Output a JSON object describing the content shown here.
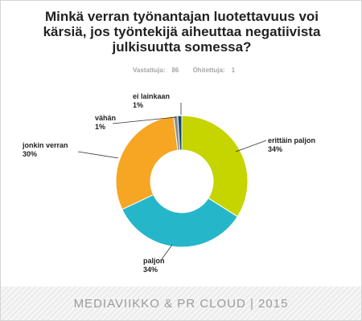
{
  "survey": {
    "title_lines": [
      "Minkä verran työnantajan luotettavuus voi",
      "kärsiä, jos työntekijä aiheuttaa negatiivista",
      "julkisuutta somessa?"
    ],
    "answered_label": "Vastattuja:",
    "answered_count": "86",
    "skipped_label": "Ohitettuja:",
    "skipped_count": "1"
  },
  "footer": {
    "text": "MEDIAVIIKKO & PR CLOUD | 2015"
  },
  "chart_data": {
    "type": "pie",
    "donut": true,
    "labels": [
      "erittäin paljon",
      "paljon",
      "jonkin verran",
      "vähän",
      "ei lainkaan"
    ],
    "values": [
      34,
      34,
      30,
      1,
      1
    ],
    "value_labels": [
      "34%",
      "34%",
      "30%",
      "1%",
      "1%"
    ],
    "colors": [
      "#c6d400",
      "#26b6c9",
      "#f6a623",
      "#8d8d8d",
      "#0f4a75"
    ],
    "legend": "none"
  }
}
